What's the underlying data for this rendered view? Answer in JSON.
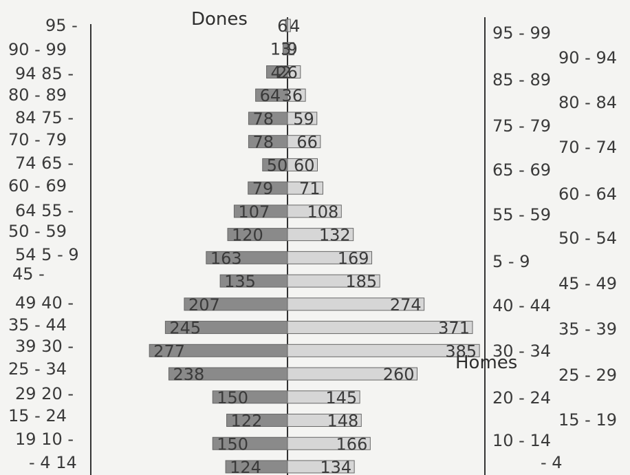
{
  "chart_data": {
    "type": "bar",
    "orientation": "horizontal",
    "subtype": "population-pyramid",
    "title_left": "Dones",
    "title_right": "Homes",
    "categories": [
      "0 - 4",
      "5 - 9",
      "10 - 14",
      "15 - 19",
      "20 - 24",
      "25 - 29",
      "30 - 34",
      "35 - 39",
      "40 - 44",
      "45 - 49",
      "50 - 54",
      "55 - 59",
      "60 - 64",
      "65 - 69",
      "70 - 74",
      "75 - 79",
      "80 - 84",
      "85 - 89",
      "90 - 94",
      "95 - 99"
    ],
    "series": [
      {
        "name": "Dones",
        "values": [
          124,
          150,
          122,
          150,
          238,
          277,
          245,
          207,
          135,
          163,
          120,
          107,
          79,
          50,
          78,
          78,
          64,
          42,
          9,
          4
        ]
      },
      {
        "name": "Homes",
        "values": [
          134,
          166,
          148,
          145,
          260,
          385,
          371,
          274,
          185,
          169,
          132,
          108,
          71,
          60,
          66,
          59,
          36,
          26,
          13,
          6
        ]
      }
    ],
    "left_axis_labels": [
      "95 -",
      "90 - 99",
      "94 85 -",
      "80 - 89",
      "84 75 -",
      "70 - 79",
      "74 65 -",
      "60 - 69",
      "64 55 -",
      "50 - 59",
      "54 5 - 9",
      "45 -",
      "49 40 -",
      "35 - 44",
      "39 30 -",
      "25 - 34",
      "29 20 -",
      "15 - 24",
      "19 10 -",
      "- 4 14"
    ],
    "right_axis_labels": [
      "95 - 99",
      "90 - 94",
      "85 - 89",
      "80 - 84",
      "75 - 79",
      "70 - 74",
      "65 - 69",
      "60 - 64",
      "55 - 59",
      "50 - 54",
      "5 - 9",
      "45 - 49",
      "40 - 44",
      "35 - 39",
      "30 - 34",
      "25 - 29",
      "20 - 24",
      "15 - 19",
      "10 - 14",
      "- 4"
    ],
    "xlim": [
      -400,
      400
    ],
    "grid": false,
    "colors": {
      "dones": "#8a8a8a",
      "homes": "#d6d6d6",
      "axis": "#333333"
    }
  }
}
